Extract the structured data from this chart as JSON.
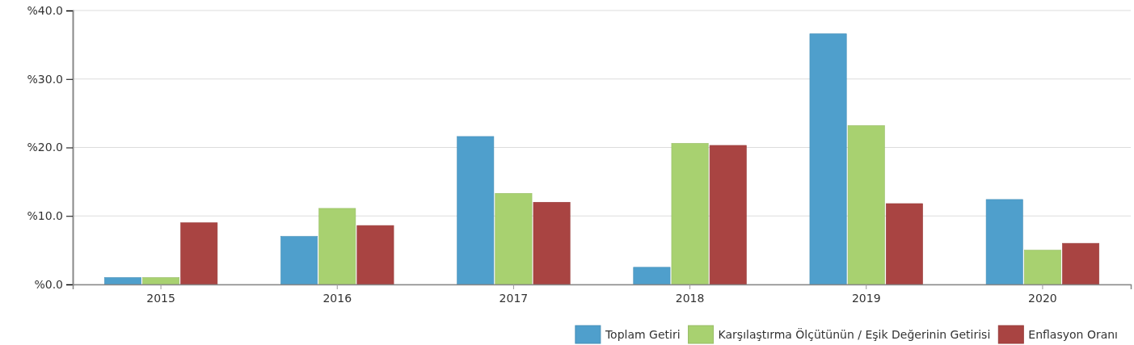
{
  "chart_data": {
    "type": "bar",
    "categories": [
      "2015",
      "2016",
      "2017",
      "2018",
      "2019",
      "2020"
    ],
    "series": [
      {
        "name": "Toplam Getiri",
        "color": "#4f9fcc",
        "values": [
          1.0,
          7.0,
          21.6,
          2.5,
          36.6,
          12.4
        ]
      },
      {
        "name": "Karşılaştırma Ölçütünün / Eşik Değerinin Getirisi",
        "color": "#a8d170",
        "values": [
          1.0,
          11.1,
          13.3,
          20.6,
          23.2,
          5.0
        ]
      },
      {
        "name": "Enflasyon Oranı",
        "color": "#a94442",
        "values": [
          9.0,
          8.6,
          12.0,
          20.3,
          11.8,
          6.0
        ]
      }
    ],
    "ylim": [
      0,
      40
    ],
    "yticks": [
      {
        "value": 0,
        "label": "%0.0"
      },
      {
        "value": 10,
        "label": "%10.0"
      },
      {
        "value": 20,
        "label": "%20.0"
      },
      {
        "value": 30,
        "label": "%30.0"
      },
      {
        "value": 40,
        "label": "%40.0"
      }
    ],
    "grid": "y",
    "legend": "bottom right"
  }
}
